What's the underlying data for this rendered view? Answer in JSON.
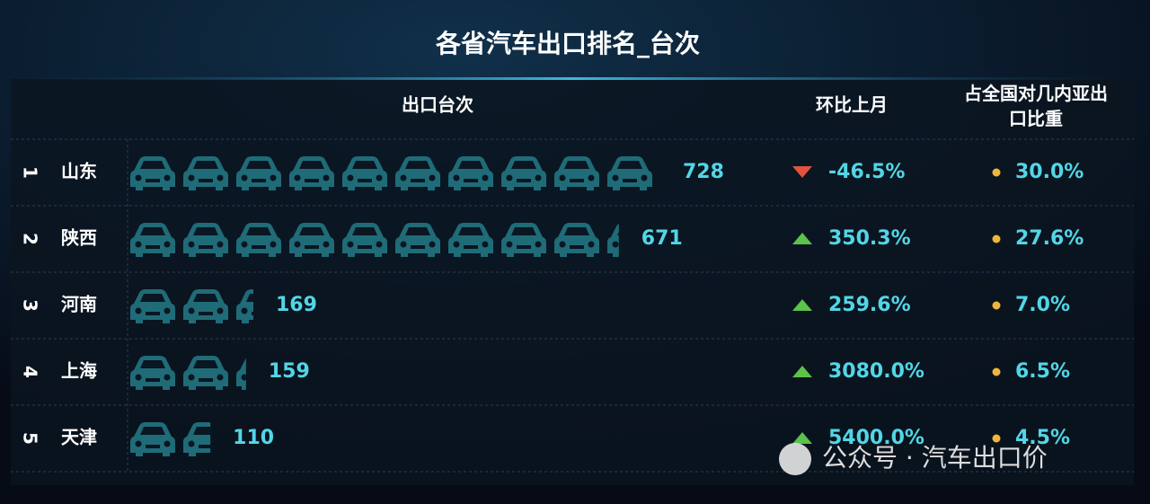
{
  "chart_data": {
    "type": "pictograph",
    "title": "各省汽车出口排名_台次",
    "ranks": [
      1,
      2,
      3,
      4,
      5
    ],
    "categories": [
      "山东",
      "陕西",
      "河南",
      "上海",
      "天津"
    ],
    "series": [
      {
        "name": "出口台次",
        "color": "#1f6c78",
        "values": [
          728,
          671,
          169,
          159,
          110
        ]
      },
      {
        "name": "环比上月",
        "values": [
          -46.5,
          350.3,
          259.6,
          3080.0,
          5400.0
        ],
        "value_labels": [
          "-46.5%",
          "350.3%",
          "259.6%",
          "3080.0%",
          "5400.0%"
        ]
      },
      {
        "name": "占全国对几内亚出口比重",
        "color": "#f0b63a",
        "values": [
          30.0,
          27.6,
          7.0,
          6.5,
          4.5
        ],
        "value_labels": [
          "30.0%",
          "27.6%",
          "7.0%",
          "6.5%",
          "4.5%"
        ]
      }
    ],
    "watermark": "公众号 · 汽车出口价"
  }
}
